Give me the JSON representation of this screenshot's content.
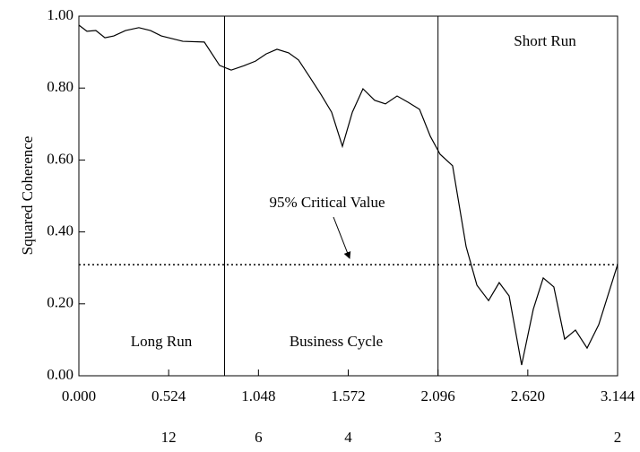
{
  "chart_data": {
    "type": "line",
    "y_label": "Squared Coherence",
    "x": [
      0,
      0.047,
      0.099,
      0.152,
      0.204,
      0.272,
      0.35,
      0.418,
      0.481,
      0.607,
      0.732,
      0.821,
      0.889,
      0.963,
      1.031,
      1.093,
      1.156,
      1.224,
      1.282,
      1.344,
      1.412,
      1.475,
      1.538,
      1.596,
      1.658,
      1.726,
      1.789,
      1.857,
      1.92,
      1.988,
      2.051,
      2.108,
      2.181,
      2.26,
      2.323,
      2.391,
      2.453,
      2.511,
      2.584,
      2.652,
      2.71,
      2.772,
      2.835,
      2.898,
      2.966,
      3.034,
      3.144
    ],
    "series": [
      {
        "name": "Squared Coherence",
        "color": "#000000",
        "values": [
          0.975,
          0.958,
          0.96,
          0.94,
          0.945,
          0.96,
          0.968,
          0.96,
          0.945,
          0.93,
          0.928,
          0.863,
          0.85,
          0.862,
          0.875,
          0.895,
          0.908,
          0.898,
          0.878,
          0.833,
          0.783,
          0.733,
          0.638,
          0.733,
          0.798,
          0.766,
          0.756,
          0.778,
          0.761,
          0.741,
          0.666,
          0.616,
          0.584,
          0.359,
          0.252,
          0.209,
          0.259,
          0.222,
          0.03,
          0.185,
          0.272,
          0.247,
          0.102,
          0.127,
          0.077,
          0.142,
          0.309
        ]
      }
    ],
    "xlim": [
      0,
      3.144
    ],
    "ylim": [
      0,
      1
    ],
    "xticks": [
      {
        "value": 0,
        "label": "0.000"
      },
      0.524,
      1.048,
      1.572,
      2.096,
      {
        "value": 2.62,
        "label": "2.620"
      },
      3.144
    ],
    "x2ticks": [
      {
        "value": 0.524,
        "label": "12"
      },
      {
        "value": 1.048,
        "label": "6"
      },
      {
        "value": 1.572,
        "label": "4"
      },
      {
        "value": 2.096,
        "label": "3"
      },
      {
        "value": 3.144,
        "label": "2"
      }
    ],
    "yticks": [
      {
        "value": 0,
        "label": "0.00"
      },
      {
        "value": 0.2,
        "label": "0.20"
      },
      {
        "value": 0.4,
        "label": "0.40"
      },
      {
        "value": 0.6,
        "label": "0.60"
      },
      {
        "value": 0.8,
        "label": "0.80"
      },
      {
        "value": 1,
        "label": "1.00"
      }
    ],
    "critical_value": 0.309,
    "region_bounds": [
      0.85,
      2.096
    ],
    "annotations": [
      "95% Critical Value",
      "Long Run",
      "Business Cycle",
      "Short Run"
    ]
  }
}
